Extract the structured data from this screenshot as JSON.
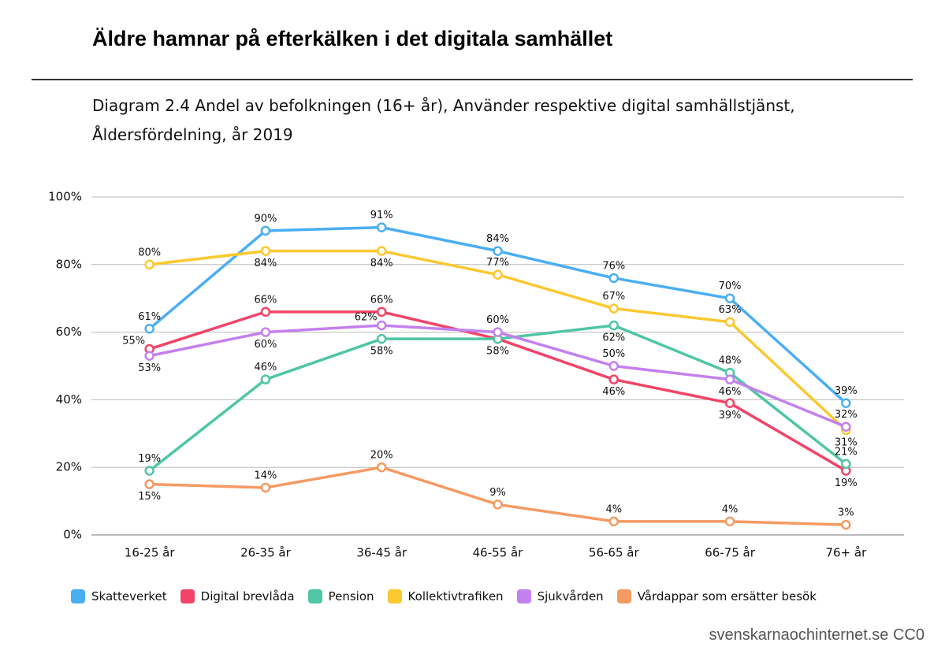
{
  "chart_data": {
    "type": "line",
    "title": "Äldre hamnar på efterkälken i det digitala samhället",
    "subtitle": "Diagram 2.4 Andel av befolkningen (16+ år), Använder respektive digital samhällstjänst, Åldersfördelning, år 2019",
    "source": "svenskarnaochinternet.se CC0",
    "categories": [
      "16-25 år",
      "26-35 år",
      "36-45 år",
      "46-55 år",
      "56-65 år",
      "66-75 år",
      "76+ år"
    ],
    "ylim": [
      0,
      100
    ],
    "yticks": [
      {
        "value": 0,
        "label": "0%"
      },
      {
        "value": 20,
        "label": "20%"
      },
      {
        "value": 40,
        "label": "40%"
      },
      {
        "value": 60,
        "label": "60%"
      },
      {
        "value": 80,
        "label": "80%"
      },
      {
        "value": 100,
        "label": "100%"
      }
    ],
    "grid": true,
    "legend": "bottom",
    "series": [
      {
        "name": "Skatteverket",
        "color": "#4aaef2",
        "values": [
          61,
          90,
          91,
          84,
          76,
          70,
          39
        ],
        "value_labels": [
          "61%",
          "90%",
          "91%",
          "84%",
          "76%",
          "70%",
          "39%"
        ]
      },
      {
        "name": "Digital brevlåda",
        "color": "#f24468",
        "values": [
          55,
          66,
          66,
          58,
          46,
          39,
          19
        ],
        "value_labels": [
          "55%",
          "66%",
          "66%",
          null,
          "46%",
          "39%",
          "19%"
        ]
      },
      {
        "name": "Pension",
        "color": "#4fc6a6",
        "values": [
          19,
          46,
          58,
          58,
          62,
          48,
          21
        ],
        "value_labels": [
          "19%",
          "46%",
          "58%",
          "58%",
          "62%",
          "48%",
          "21%"
        ]
      },
      {
        "name": "Kollektivtrafiken",
        "color": "#fbc82f",
        "values": [
          80,
          84,
          84,
          77,
          67,
          63,
          31
        ],
        "value_labels": [
          "80%",
          "84%",
          "84%",
          "77%",
          "67%",
          "63%",
          "31%"
        ]
      },
      {
        "name": "Sjukvården",
        "color": "#c380ee",
        "values": [
          53,
          60,
          62,
          60,
          50,
          46,
          32
        ],
        "value_labels": [
          "53%",
          "60%",
          "62%",
          "60%",
          "50%",
          "46%",
          "32%"
        ]
      },
      {
        "name": "Vårdappar som ersätter besök",
        "color": "#f59a62",
        "values": [
          15,
          14,
          20,
          9,
          4,
          4,
          3
        ],
        "value_labels": [
          "15%",
          "14%",
          "20%",
          "9%",
          "4%",
          "4%",
          "3%"
        ]
      }
    ]
  }
}
